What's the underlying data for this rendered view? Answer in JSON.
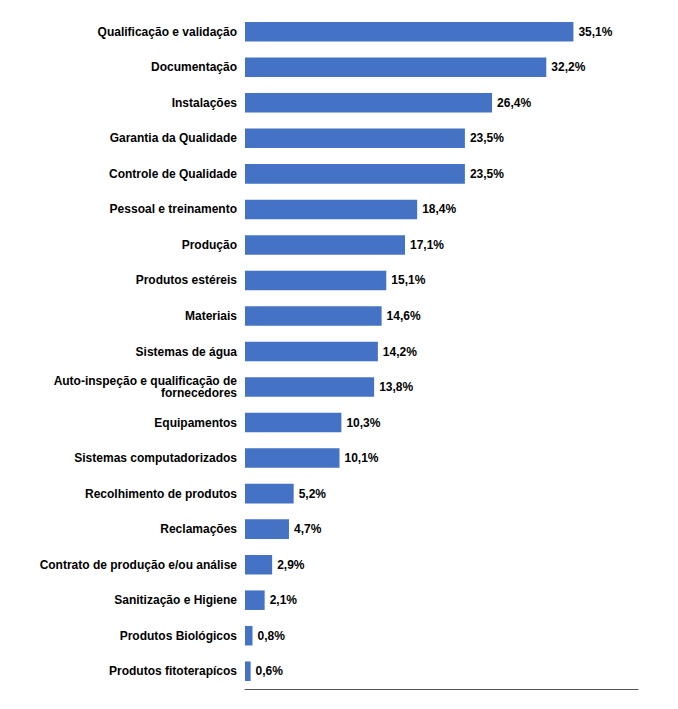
{
  "chart_data": {
    "type": "bar",
    "orientation": "horizontal",
    "categories": [
      "Qualificação e validação",
      "Documentação",
      "Instalações",
      "Garantia da Qualidade",
      "Controle de Qualidade",
      "Pessoal e treinamento",
      "Produção",
      "Produtos estéreis",
      "Materiais",
      "Sistemas de água",
      "Auto-inspeção e qualificação de\nfornecedores",
      "Equipamentos",
      "Sistemas computadorizados",
      "Recolhimento de produtos",
      "Reclamações",
      "Contrato de produção e/ou análise",
      "Sanitização e Higiene",
      "Produtos Biológicos",
      "Produtos fitoterapícos"
    ],
    "values": [
      35.1,
      32.2,
      26.4,
      23.5,
      23.5,
      18.4,
      17.1,
      15.1,
      14.6,
      14.2,
      13.8,
      10.3,
      10.1,
      5.2,
      4.7,
      2.9,
      2.1,
      0.8,
      0.6
    ],
    "value_labels": [
      "35,1%",
      "32,2%",
      "26,4%",
      "23,5%",
      "23,5%",
      "18,4%",
      "17,1%",
      "15,1%",
      "14,6%",
      "14,2%",
      "13,8%",
      "10,3%",
      "10,1%",
      "5,2%",
      "4,7%",
      "2,9%",
      "2,1%",
      "0,8%",
      "0,6%"
    ],
    "data_labels": true,
    "color": "#4472C4",
    "xlim": [
      0,
      42
    ],
    "tick_labels": "y",
    "grid": false
  }
}
